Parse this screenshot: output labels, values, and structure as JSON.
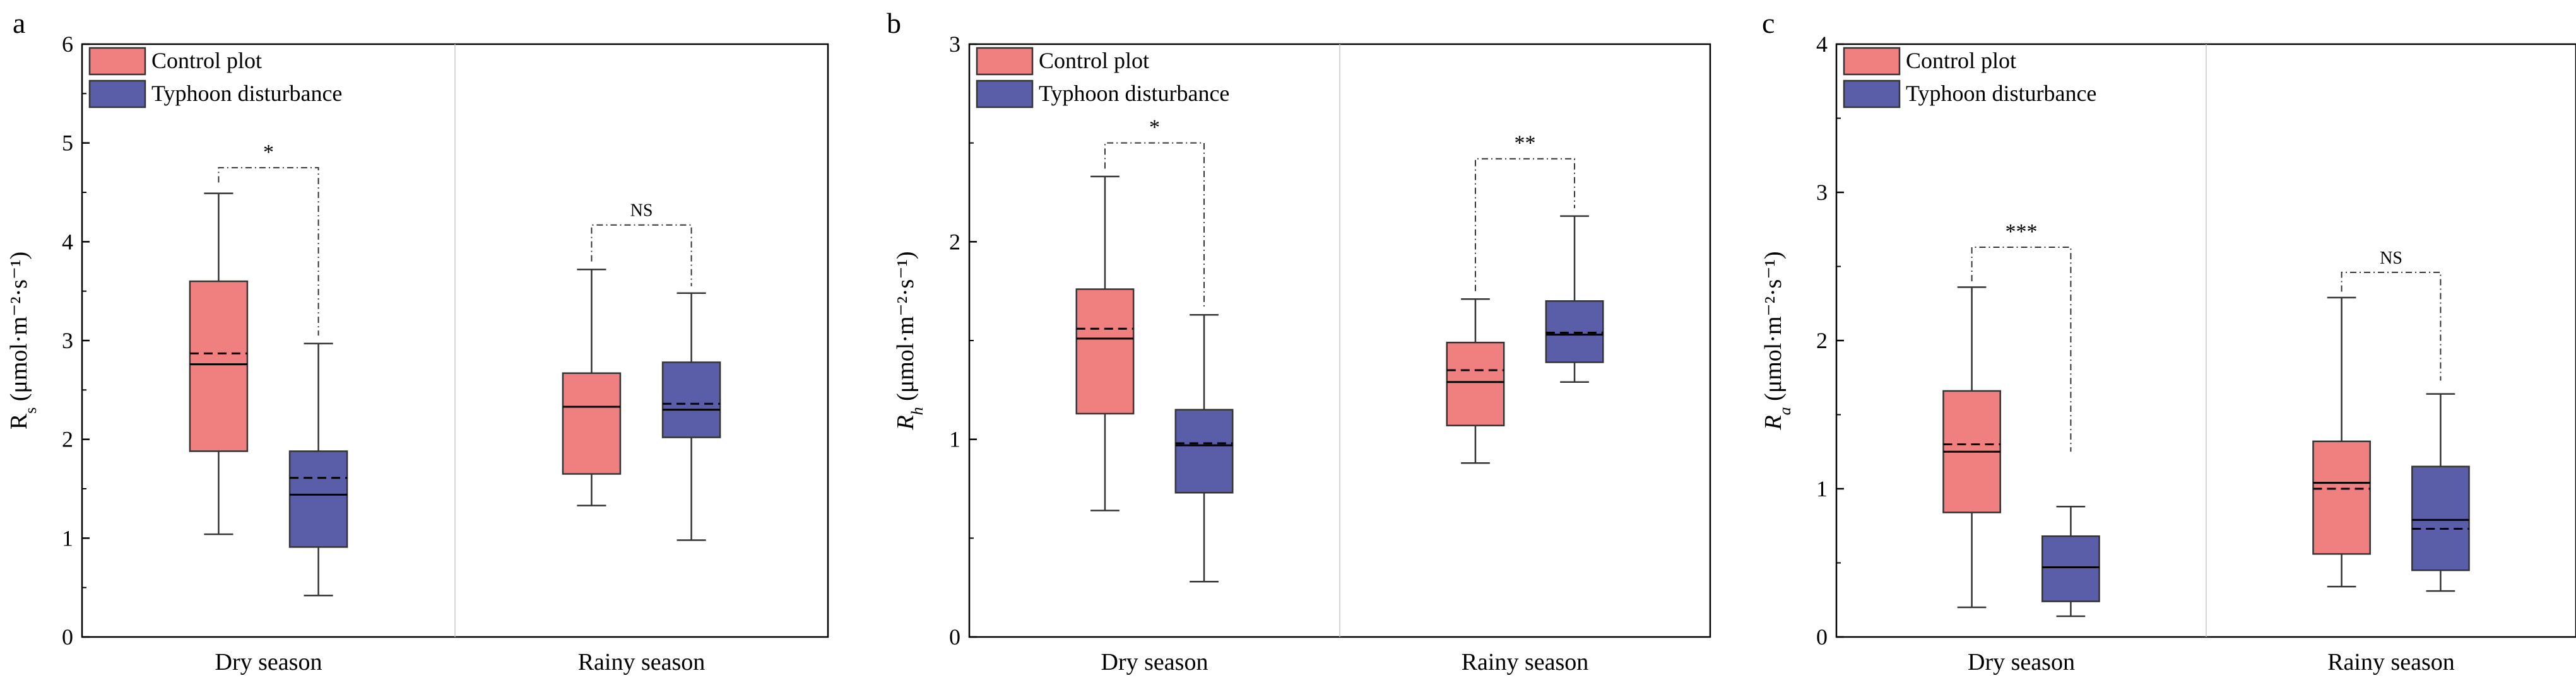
{
  "legend_entries": [
    {
      "label": "Control plot",
      "color": "#f08080"
    },
    {
      "label": "Typhoon disturbance",
      "color": "#5a5ea8"
    }
  ],
  "chart_data": [
    {
      "type": "box",
      "panel_label": "a",
      "ylabel": "R",
      "ylabel_sub": "s",
      "ylabel_sub_italic": false,
      "ylabel_unit": " (μmol·m⁻²·s⁻¹)",
      "ylim": [
        0,
        6
      ],
      "yticks": [
        0,
        1,
        2,
        3,
        4,
        5,
        6
      ],
      "categories": [
        "Dry season",
        "Rainy season"
      ],
      "legend_placement": "top-left",
      "series": [
        {
          "name": "Control plot",
          "color": "#f08080",
          "boxes": [
            {
              "min": 1.04,
              "q1": 1.88,
              "median": 2.76,
              "mean": 2.87,
              "q3": 3.6,
              "max": 4.49
            },
            {
              "min": 1.33,
              "q1": 1.65,
              "median": 2.33,
              "mean": 2.33,
              "q3": 2.67,
              "max": 3.72
            }
          ]
        },
        {
          "name": "Typhoon disturbance",
          "color": "#5a5ea8",
          "boxes": [
            {
              "min": 0.42,
              "q1": 0.91,
              "median": 1.44,
              "mean": 1.61,
              "q3": 1.88,
              "max": 2.97
            },
            {
              "min": 0.98,
              "q1": 2.02,
              "median": 2.3,
              "mean": 2.36,
              "q3": 2.78,
              "max": 3.48
            }
          ]
        }
      ],
      "significance": [
        {
          "category": "Dry season",
          "label": "*",
          "bracket_y": 4.75,
          "left_y": 4.6,
          "right_y": 3.05
        },
        {
          "category": "Rainy season",
          "label": "NS",
          "bracket_y": 4.17,
          "left_y": 3.8,
          "right_y": 3.55
        }
      ]
    },
    {
      "type": "box",
      "panel_label": "b",
      "ylabel": "R",
      "ylabel_sub": "h",
      "ylabel_sub_italic": true,
      "ylabel_unit": " (μmol·m⁻²·s⁻¹)",
      "ylim": [
        0,
        3
      ],
      "yticks": [
        0,
        1,
        2,
        3
      ],
      "categories": [
        "Dry season",
        "Rainy season"
      ],
      "legend_placement": "top-left",
      "series": [
        {
          "name": "Control plot",
          "color": "#f08080",
          "boxes": [
            {
              "min": 0.64,
              "q1": 1.13,
              "median": 1.51,
              "mean": 1.56,
              "q3": 1.76,
              "max": 2.33
            },
            {
              "min": 0.88,
              "q1": 1.07,
              "median": 1.29,
              "mean": 1.35,
              "q3": 1.49,
              "max": 1.71
            }
          ]
        },
        {
          "name": "Typhoon disturbance",
          "color": "#5a5ea8",
          "boxes": [
            {
              "min": 0.28,
              "q1": 0.73,
              "median": 0.97,
              "mean": 0.98,
              "q3": 1.15,
              "max": 1.63
            },
            {
              "min": 1.29,
              "q1": 1.39,
              "median": 1.53,
              "mean": 1.54,
              "q3": 1.7,
              "max": 2.13
            }
          ]
        }
      ],
      "significance": [
        {
          "category": "Dry season",
          "label": "*",
          "bracket_y": 2.5,
          "left_y": 2.37,
          "right_y": 1.67
        },
        {
          "category": "Rainy season",
          "label": "**",
          "bracket_y": 2.42,
          "left_y": 1.75,
          "right_y": 2.17
        }
      ]
    },
    {
      "type": "box",
      "panel_label": "c",
      "ylabel": "R",
      "ylabel_sub": "a",
      "ylabel_sub_italic": true,
      "ylabel_unit": " (μmol·m⁻²·s⁻¹)",
      "ylim": [
        0,
        4
      ],
      "yticks": [
        0,
        1,
        2,
        3,
        4
      ],
      "categories": [
        "Dry season",
        "Rainy season"
      ],
      "legend_placement": "top-left",
      "series": [
        {
          "name": "Control plot",
          "color": "#f08080",
          "boxes": [
            {
              "min": 0.2,
              "q1": 0.84,
              "median": 1.25,
              "mean": 1.3,
              "q3": 1.66,
              "max": 2.36
            },
            {
              "min": 0.34,
              "q1": 0.56,
              "median": 1.04,
              "mean": 1.0,
              "q3": 1.32,
              "max": 2.29
            }
          ]
        },
        {
          "name": "Typhoon disturbance",
          "color": "#5a5ea8",
          "boxes": [
            {
              "min": 0.14,
              "q1": 0.24,
              "median": 0.47,
              "mean": 0.47,
              "q3": 0.68,
              "max": 0.88
            },
            {
              "min": 0.31,
              "q1": 0.45,
              "median": 0.79,
              "mean": 0.73,
              "q3": 1.15,
              "max": 1.64
            }
          ]
        }
      ],
      "significance": [
        {
          "category": "Dry season",
          "label": "***",
          "bracket_y": 2.63,
          "left_y": 2.4,
          "right_y": 1.25
        },
        {
          "category": "Rainy season",
          "label": "NS",
          "bracket_y": 2.46,
          "left_y": 2.33,
          "right_y": 1.73
        }
      ]
    }
  ]
}
